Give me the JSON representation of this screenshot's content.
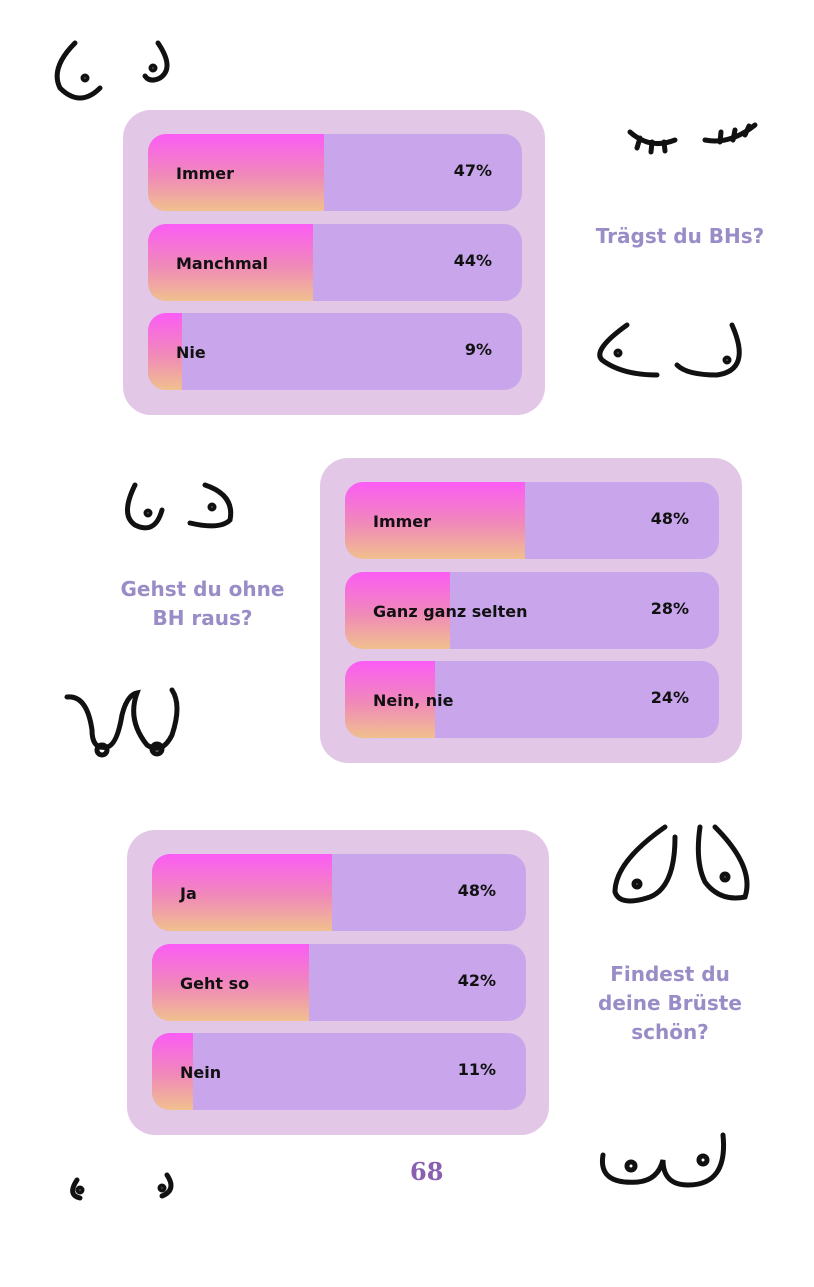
{
  "colors": {
    "box": "#e2c7e6",
    "track": "#c9a6ec",
    "fill_top": "#fb5cf5",
    "fill_bottom": "#f1c08e",
    "question": "#9a8cc6",
    "page_number": "#8a5fb0"
  },
  "chart_data": [
    {
      "type": "bar",
      "orientation": "horizontal",
      "title": "Trägst du BHs?",
      "categories": [
        "Immer",
        "Manchmal",
        "Nie"
      ],
      "values": [
        47,
        44,
        9
      ],
      "labels": [
        "47%",
        "44%",
        "9%"
      ],
      "xlim": [
        0,
        100
      ]
    },
    {
      "type": "bar",
      "orientation": "horizontal",
      "title": "Gehst du ohne BH raus?",
      "categories": [
        "Immer",
        "Ganz ganz selten",
        "Nein, nie"
      ],
      "values": [
        48,
        28,
        24
      ],
      "labels": [
        "48%",
        "28%",
        "24%"
      ],
      "xlim": [
        0,
        100
      ]
    },
    {
      "type": "bar",
      "orientation": "horizontal",
      "title": "Findest du deine Brüste schön?",
      "categories": [
        "Ja",
        "Geht so",
        "Nein"
      ],
      "values": [
        48,
        42,
        11
      ],
      "labels": [
        "48%",
        "42%",
        "11%"
      ],
      "xlim": [
        0,
        100
      ]
    }
  ],
  "questions": [
    "Trägst du BHs?",
    "Gehst du ohne BH raus?",
    "Findest du deine Brüste schön?"
  ],
  "page_number": "68",
  "decorations": [
    "breast-doodle-icon"
  ]
}
